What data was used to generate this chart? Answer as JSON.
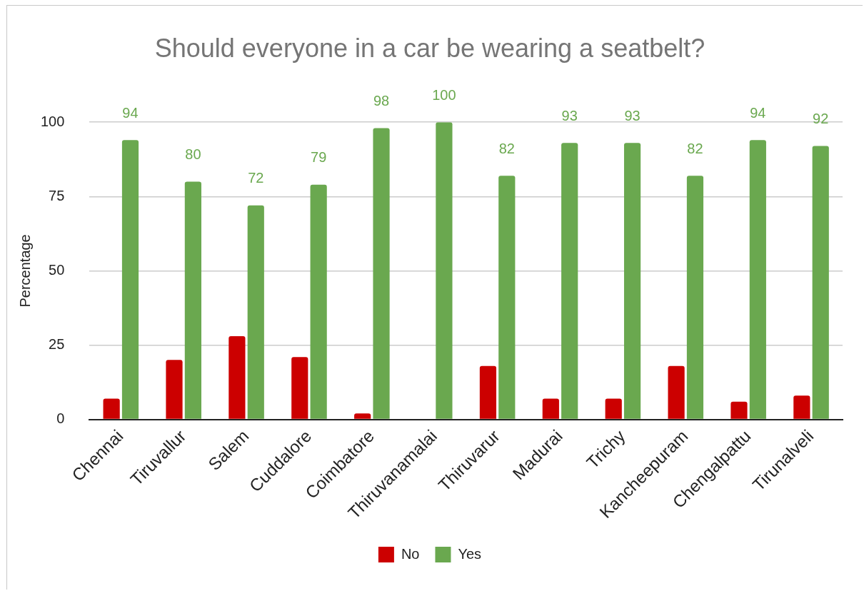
{
  "chart_data": {
    "type": "bar",
    "title": "Should everyone in a car be wearing a seatbelt?",
    "ylabel": "Percentage",
    "categories": [
      "Chennai",
      "Tiruvallur",
      "Salem",
      "Cuddalore",
      "Coimbatore",
      "Thiruvanamalai",
      "Thiruvarur",
      "Madurai",
      "Trichy",
      "Kancheepuram",
      "Chengalpattu",
      "Tirunalveli"
    ],
    "series": [
      {
        "name": "No",
        "color": "#cc0000",
        "values": [
          7,
          20,
          28,
          21,
          2,
          0,
          18,
          7,
          7,
          18,
          6,
          8
        ]
      },
      {
        "name": "Yes",
        "color": "#6aa84f",
        "values": [
          94,
          80,
          72,
          79,
          98,
          100,
          82,
          93,
          93,
          82,
          94,
          92
        ],
        "value_labels": [
          "94",
          "80",
          "72",
          "79",
          "98",
          "100",
          "82",
          "93",
          "93",
          "82",
          "94",
          "92"
        ]
      }
    ],
    "ylim": [
      0,
      100
    ],
    "yticks": [
      0,
      25,
      50,
      75,
      100
    ],
    "grid": "y",
    "legend": "bottom"
  }
}
